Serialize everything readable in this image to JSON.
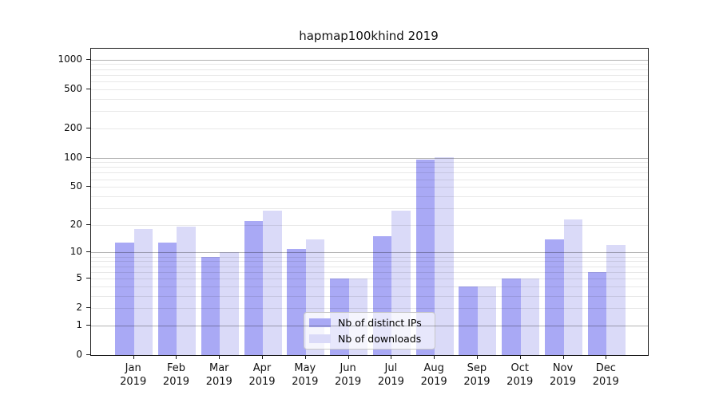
{
  "figure": {
    "title": "hapmap100khind 2019"
  },
  "chart_data": {
    "type": "bar",
    "title": "hapmap100khind 2019",
    "categories": [
      "Jan",
      "Feb",
      "Mar",
      "Apr",
      "May",
      "Jun",
      "Jul",
      "Aug",
      "Sep",
      "Oct",
      "Nov",
      "Dec"
    ],
    "category_year": "2019",
    "series": [
      {
        "name": "Nb of distinct IPs",
        "color": "#a9a9f5",
        "values": [
          13,
          13,
          9,
          22,
          11,
          5,
          15,
          96,
          4,
          5,
          14,
          6
        ]
      },
      {
        "name": "Nb of downloads",
        "color": "#dadaf8",
        "values": [
          18,
          19,
          10,
          28,
          14,
          5,
          28,
          101,
          4,
          5,
          23,
          12
        ]
      }
    ],
    "xlabel": "",
    "ylabel": "",
    "yscale": "log1p",
    "ylim": [
      0,
      1289
    ],
    "y_ticks": [
      0,
      1,
      2,
      5,
      10,
      20,
      50,
      100,
      200,
      500,
      1000
    ],
    "grid": {
      "major_at": [
        1,
        10,
        100,
        1000
      ],
      "minor_at": [
        2,
        3,
        4,
        5,
        6,
        7,
        8,
        9,
        20,
        30,
        40,
        50,
        60,
        70,
        80,
        90,
        200,
        300,
        400,
        500,
        600,
        700,
        800,
        900
      ]
    },
    "legend": {
      "position": "inside-bottom-center"
    }
  }
}
